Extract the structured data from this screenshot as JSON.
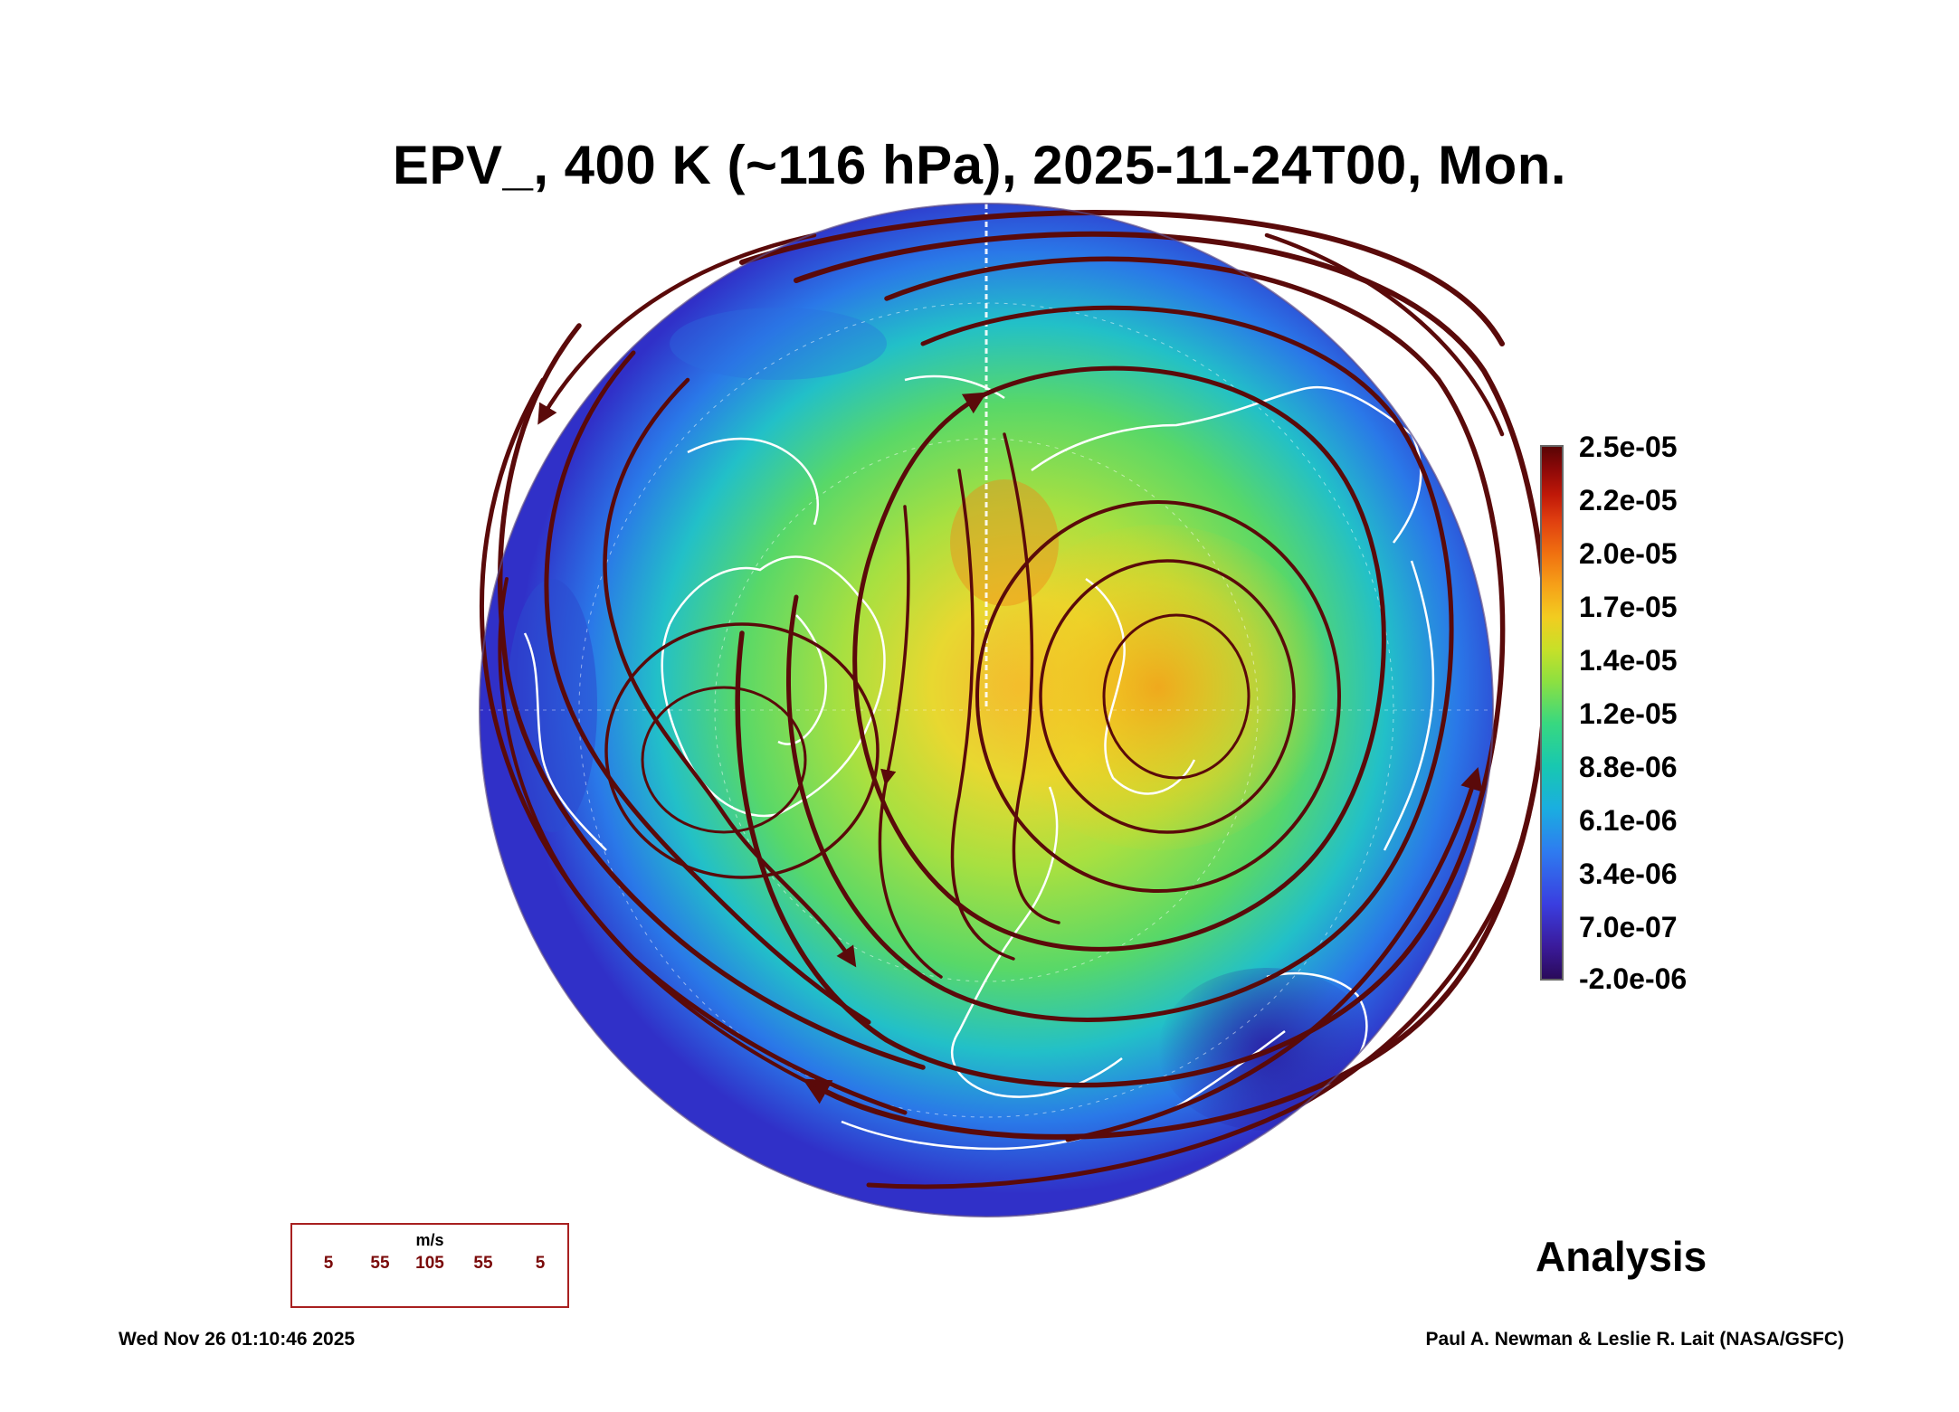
{
  "title": "EPV_, 400 K (~116 hPa), 2025-11-24T00, Mon.",
  "colorbar": {
    "labels": [
      "2.5e-05",
      "2.2e-05",
      "2.0e-05",
      "1.7e-05",
      "1.4e-05",
      "1.2e-05",
      "8.8e-06",
      "6.1e-06",
      "3.4e-06",
      "7.0e-07",
      "-2.0e-06"
    ],
    "colors": [
      "#5a0404",
      "#8a0808",
      "#c01808",
      "#e04010",
      "#f07010",
      "#f6a018",
      "#f2cc20",
      "#c8e028",
      "#8ee040",
      "#38d880",
      "#18c8b0",
      "#1aaee0",
      "#2e7cf0",
      "#3a3ee0",
      "#3a1a9a",
      "#2a0a5a"
    ]
  },
  "wind_legend": {
    "unit": "m/s",
    "labels": [
      "5",
      "55",
      "105",
      "55",
      "5"
    ],
    "color": "#6b0a0a"
  },
  "map": {
    "projection": "polar-stereographic",
    "hemisphere": "north",
    "streamline_color": "#5a0a0a",
    "coastline_color": "#ffffff"
  },
  "footer": {
    "label": "Analysis",
    "timestamp": "Wed Nov 26 01:10:46 2025",
    "credit": "Paul A. Newman & Leslie R. Lait (NASA/GSFC)"
  }
}
